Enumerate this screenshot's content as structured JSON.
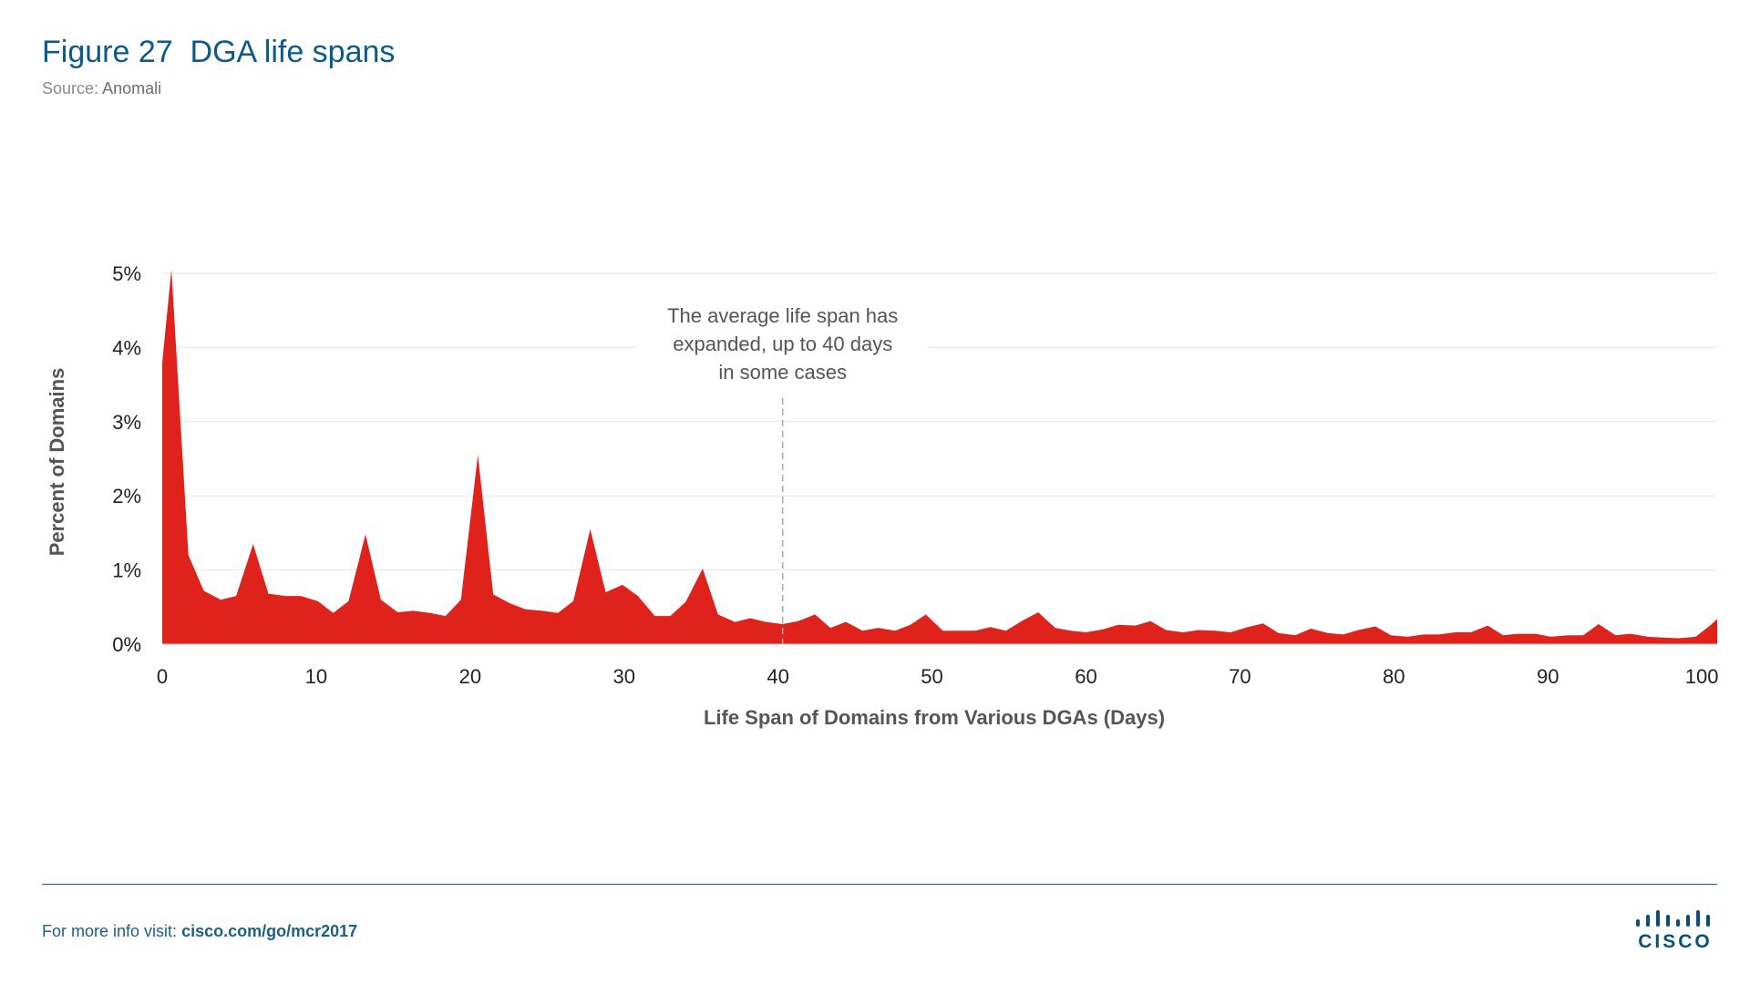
{
  "header": {
    "title": "Figure 27  DGA life spans",
    "source_label": "Source:",
    "source_name": "Anomali"
  },
  "chart_data": {
    "type": "area",
    "xlabel": "Life Span of Domains from Various DGAs (Days)",
    "ylabel": "Percent of Domains",
    "xlim": [
      0,
      101
    ],
    "ylim": [
      0,
      5
    ],
    "x_ticks": [
      0,
      10,
      20,
      30,
      40,
      50,
      60,
      70,
      80,
      90,
      100
    ],
    "y_ticks": [
      0,
      1,
      2,
      3,
      4,
      5
    ],
    "y_tick_labels": [
      "0%",
      "1%",
      "2%",
      "3%",
      "4%",
      "5%"
    ],
    "grid": true,
    "fill_color": "#e0221c",
    "annotation": {
      "x": 40.3,
      "lines": [
        "The average life span has",
        "expanded, up to 40 days",
        "in some cases"
      ]
    },
    "series": [
      {
        "values": [
          [
            0,
            3.8
          ],
          [
            0.6,
            5.05
          ],
          [
            1.7,
            1.2
          ],
          [
            2.7,
            0.72
          ],
          [
            3.8,
            0.6
          ],
          [
            4.8,
            0.65
          ],
          [
            5.9,
            1.35
          ],
          [
            6.9,
            0.68
          ],
          [
            8,
            0.65
          ],
          [
            9,
            0.65
          ],
          [
            10.1,
            0.58
          ],
          [
            11.1,
            0.42
          ],
          [
            12.1,
            0.58
          ],
          [
            13.2,
            1.48
          ],
          [
            14.2,
            0.6
          ],
          [
            15.3,
            0.43
          ],
          [
            16.3,
            0.45
          ],
          [
            17.4,
            0.42
          ],
          [
            18.4,
            0.38
          ],
          [
            19.4,
            0.6
          ],
          [
            20.5,
            2.55
          ],
          [
            21.5,
            0.67
          ],
          [
            22.6,
            0.55
          ],
          [
            23.6,
            0.47
          ],
          [
            24.7,
            0.45
          ],
          [
            25.7,
            0.42
          ],
          [
            26.7,
            0.58
          ],
          [
            27.8,
            1.55
          ],
          [
            28.8,
            0.7
          ],
          [
            29.9,
            0.8
          ],
          [
            30.9,
            0.65
          ],
          [
            32,
            0.38
          ],
          [
            33,
            0.38
          ],
          [
            34,
            0.57
          ],
          [
            35.1,
            1.02
          ],
          [
            36.1,
            0.4
          ],
          [
            37.2,
            0.3
          ],
          [
            38.2,
            0.35
          ],
          [
            39.2,
            0.3
          ],
          [
            40.3,
            0.27
          ],
          [
            41.3,
            0.31
          ],
          [
            42.4,
            0.4
          ],
          [
            43.4,
            0.22
          ],
          [
            44.4,
            0.3
          ],
          [
            45.5,
            0.18
          ],
          [
            46.5,
            0.22
          ],
          [
            47.6,
            0.18
          ],
          [
            48.6,
            0.26
          ],
          [
            49.6,
            0.4
          ],
          [
            50.7,
            0.18
          ],
          [
            51.7,
            0.18
          ],
          [
            52.8,
            0.18
          ],
          [
            53.8,
            0.23
          ],
          [
            54.8,
            0.18
          ],
          [
            55.9,
            0.32
          ],
          [
            56.9,
            0.43
          ],
          [
            58,
            0.22
          ],
          [
            59,
            0.18
          ],
          [
            60,
            0.16
          ],
          [
            61.1,
            0.2
          ],
          [
            62.1,
            0.26
          ],
          [
            63.2,
            0.25
          ],
          [
            64.2,
            0.31
          ],
          [
            65.2,
            0.19
          ],
          [
            66.3,
            0.16
          ],
          [
            67.3,
            0.19
          ],
          [
            68.4,
            0.18
          ],
          [
            69.4,
            0.16
          ],
          [
            70.5,
            0.23
          ],
          [
            71.5,
            0.28
          ],
          [
            72.5,
            0.15
          ],
          [
            73.6,
            0.12
          ],
          [
            74.6,
            0.21
          ],
          [
            75.7,
            0.15
          ],
          [
            76.7,
            0.13
          ],
          [
            77.7,
            0.19
          ],
          [
            78.8,
            0.24
          ],
          [
            79.8,
            0.12
          ],
          [
            80.9,
            0.1
          ],
          [
            81.9,
            0.13
          ],
          [
            82.9,
            0.13
          ],
          [
            84,
            0.16
          ],
          [
            85,
            0.16
          ],
          [
            86.1,
            0.25
          ],
          [
            87.1,
            0.12
          ],
          [
            88.1,
            0.14
          ],
          [
            89.2,
            0.14
          ],
          [
            90.2,
            0.1
          ],
          [
            91.3,
            0.12
          ],
          [
            92.3,
            0.12
          ],
          [
            93.3,
            0.27
          ],
          [
            94.4,
            0.12
          ],
          [
            95.4,
            0.14
          ],
          [
            96.5,
            0.1
          ],
          [
            97.5,
            0.09
          ],
          [
            98.5,
            0.08
          ],
          [
            99.6,
            0.1
          ],
          [
            100.6,
            0.26
          ],
          [
            101.5,
            0.34
          ]
        ]
      }
    ]
  },
  "footer": {
    "prefix": "For more info visit:",
    "link": "cisco.com/go/mcr2017"
  },
  "logo": {
    "text": "CISCO",
    "color": "#0a4f7a"
  }
}
